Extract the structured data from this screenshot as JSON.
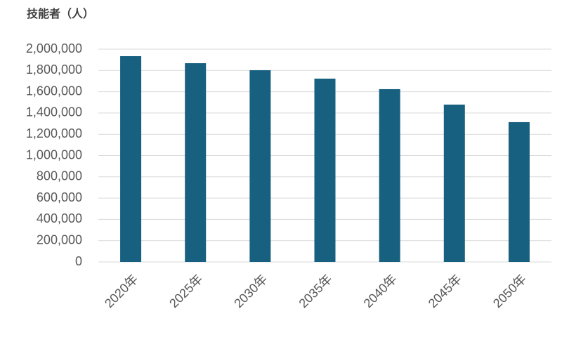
{
  "chart_data": {
    "type": "bar",
    "y_label": "技能者（人）",
    "categories": [
      "2020年",
      "2025年",
      "2030年",
      "2035年",
      "2040年",
      "2045年",
      "2050年"
    ],
    "values": [
      1934000,
      1868000,
      1802000,
      1723000,
      1624000,
      1479000,
      1314000
    ],
    "color": "#17607f",
    "ylim": [
      0,
      2000000
    ],
    "yticks": [
      0,
      {
        "value": 200000,
        "label": "200,000"
      },
      {
        "value": 400000,
        "label": "400,000"
      },
      {
        "value": 600000,
        "label": "600,000"
      },
      {
        "value": 800000,
        "label": "800,000"
      },
      {
        "value": 1000000,
        "label": "1,000,000"
      },
      {
        "value": 1200000,
        "label": "1,200,000"
      },
      {
        "value": 1400000,
        "label": "1,400,000"
      },
      {
        "value": 1600000,
        "label": "1,600,000"
      },
      {
        "value": 1800000,
        "label": "1,800,000"
      },
      {
        "value": 2000000,
        "label": "2,000,000"
      }
    ],
    "grid": true
  }
}
